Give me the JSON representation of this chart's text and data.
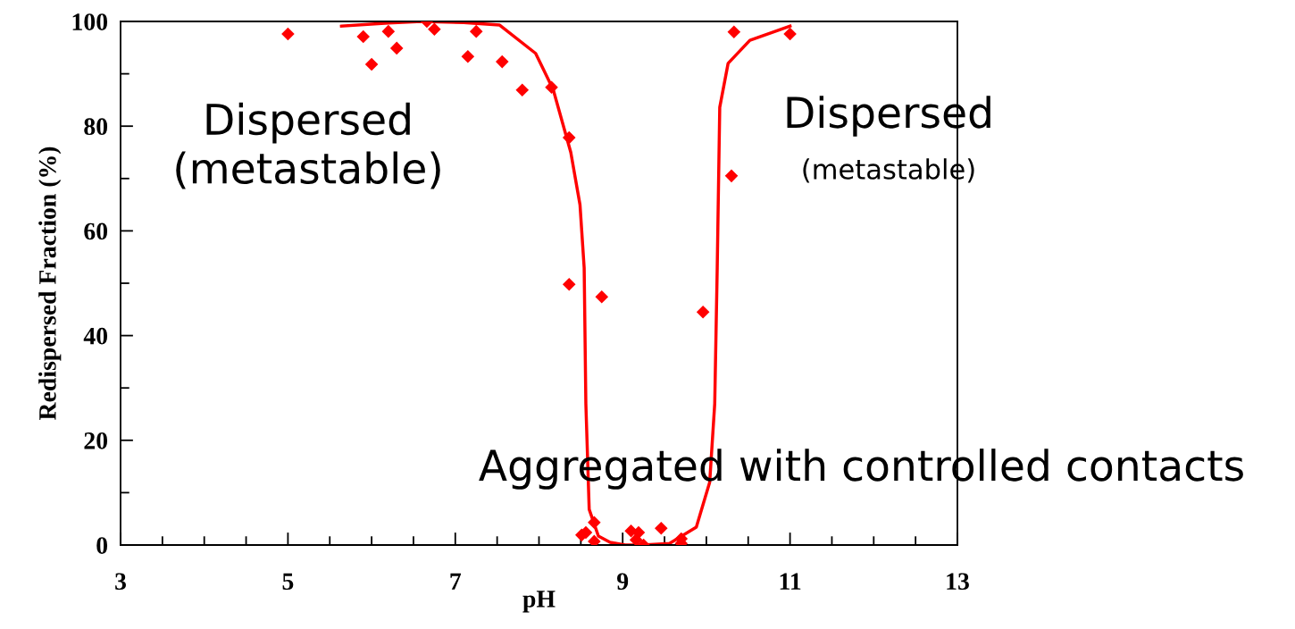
{
  "chart_data": {
    "type": "scatter",
    "xlabel": "pH",
    "ylabel": "Redispersed Fraction (%)",
    "xlim": [
      3,
      13
    ],
    "xticks": [
      3,
      5,
      7,
      9,
      11,
      13
    ],
    "ylim": [
      0,
      100
    ],
    "yticks": [
      0,
      20,
      40,
      60,
      80,
      100
    ],
    "grid": false,
    "legend": false,
    "series": [
      {
        "color": "#ff0000",
        "marker": "diamond",
        "x": [
          5.0,
          5.9,
          6.0,
          6.2,
          6.3,
          6.66,
          6.75,
          7.15,
          7.25,
          7.56,
          7.8,
          8.15,
          8.36,
          8.36,
          8.75,
          9.96,
          8.51,
          8.56,
          8.66,
          8.66,
          9.1,
          9.19,
          9.16,
          9.25,
          9.46,
          9.7,
          9.7,
          10.33,
          11.0,
          10.3
        ],
        "values": [
          97.6,
          97.1,
          91.8,
          98.1,
          94.9,
          100,
          98.5,
          93.3,
          98.1,
          92.3,
          86.9,
          87.4,
          77.8,
          49.8,
          47.4,
          44.5,
          1.9,
          2.4,
          4.3,
          0.7,
          2.7,
          2.4,
          1.0,
          0.0,
          3.2,
          1.2,
          0.3,
          98.0,
          97.6,
          70.5
        ]
      },
      {
        "type": "line",
        "color": "#ff0000",
        "marker": "none",
        "line_style": "solid",
        "x": [
          5.64,
          6.2,
          6.6,
          7.1,
          7.53,
          7.96,
          8.17,
          8.38,
          8.49,
          8.54,
          8.56,
          8.6,
          8.71,
          8.85,
          9.03,
          9.24,
          9.56,
          9.88,
          10.04,
          10.1,
          10.13,
          10.16,
          10.26,
          10.52,
          11.0
        ],
        "values": [
          99.1,
          99.7,
          100,
          99.8,
          99.3,
          93.9,
          87.0,
          75.0,
          65.0,
          52.9,
          27.0,
          6.8,
          1.7,
          0.5,
          0.0,
          0.0,
          0.3,
          3.4,
          12.0,
          27.0,
          53.0,
          83.6,
          92.0,
          96.4,
          99.1
        ]
      }
    ],
    "annotations": [
      "Dispersed\n(metastable)",
      "Dispersed",
      "(metastable)",
      "Aggregated with controlled contacts"
    ]
  }
}
